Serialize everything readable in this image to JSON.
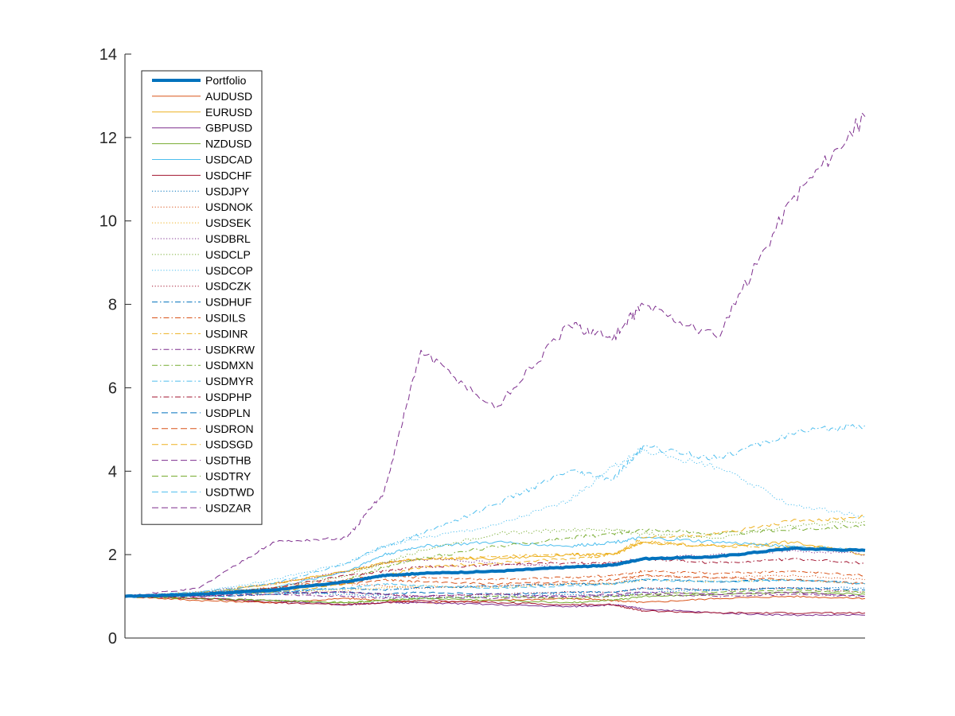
{
  "chart_data": {
    "type": "line",
    "title": "",
    "xlabel": "",
    "ylabel": "",
    "ylim": [
      0,
      14
    ],
    "yticks": [
      "0",
      "2",
      "4",
      "6",
      "8",
      "10",
      "12",
      "14"
    ],
    "xticks": [],
    "grid": false,
    "legend_position": "top-left",
    "x": [
      0,
      0.1,
      0.2,
      0.3,
      0.35,
      0.4,
      0.5,
      0.6,
      0.66,
      0.7,
      0.8,
      0.9,
      1.0
    ],
    "series": [
      {
        "name": "Portfolio",
        "color": "#0072BD",
        "dash": "solid",
        "width": 4,
        "values": [
          1.0,
          1.05,
          1.15,
          1.35,
          1.5,
          1.55,
          1.6,
          1.7,
          1.75,
          1.9,
          1.95,
          2.15,
          2.1
        ]
      },
      {
        "name": "AUDUSD",
        "color": "#D95319",
        "dash": "solid",
        "width": 1,
        "values": [
          1.0,
          0.9,
          0.85,
          0.95,
          0.9,
          0.85,
          0.9,
          0.95,
          0.9,
          0.85,
          0.95,
          1.0,
          0.95
        ]
      },
      {
        "name": "EURUSD",
        "color": "#EDB120",
        "dash": "solid",
        "width": 1,
        "values": [
          1.0,
          1.05,
          1.3,
          1.6,
          1.8,
          1.9,
          1.9,
          2.0,
          2.0,
          2.3,
          2.2,
          2.3,
          2.0
        ]
      },
      {
        "name": "GBPUSD",
        "color": "#7E2F8E",
        "dash": "solid",
        "width": 1,
        "values": [
          1.0,
          0.95,
          0.9,
          0.8,
          0.85,
          0.85,
          0.8,
          0.75,
          0.8,
          0.7,
          0.6,
          0.55,
          0.55
        ]
      },
      {
        "name": "NZDUSD",
        "color": "#77AC30",
        "dash": "solid",
        "width": 1,
        "values": [
          1.0,
          0.95,
          0.9,
          0.85,
          0.9,
          0.95,
          0.9,
          0.85,
          0.9,
          1.0,
          1.05,
          1.1,
          1.05
        ]
      },
      {
        "name": "USDCAD",
        "color": "#4DBEEE",
        "dash": "solid",
        "width": 1,
        "values": [
          1.0,
          1.1,
          1.2,
          1.6,
          2.0,
          2.2,
          2.3,
          2.2,
          2.3,
          2.4,
          2.3,
          2.2,
          2.1
        ]
      },
      {
        "name": "USDCHF",
        "color": "#A2142F",
        "dash": "solid",
        "width": 1,
        "values": [
          1.0,
          0.95,
          0.85,
          0.8,
          0.85,
          0.9,
          0.85,
          0.8,
          0.8,
          0.65,
          0.6,
          0.6,
          0.6
        ]
      },
      {
        "name": "USDJPY",
        "color": "#0072BD",
        "dash": "dotted",
        "width": 1,
        "values": [
          1.0,
          1.05,
          1.1,
          1.05,
          1.0,
          0.95,
          1.0,
          1.05,
          1.0,
          1.1,
          1.15,
          1.2,
          1.2
        ]
      },
      {
        "name": "USDNOK",
        "color": "#D95319",
        "dash": "dotted",
        "width": 1,
        "values": [
          1.0,
          1.1,
          1.2,
          1.3,
          1.25,
          1.2,
          1.25,
          1.3,
          1.3,
          1.5,
          1.45,
          1.5,
          1.4
        ]
      },
      {
        "name": "USDSEK",
        "color": "#EDB120",
        "dash": "dotted",
        "width": 1,
        "values": [
          1.0,
          1.05,
          1.1,
          1.15,
          1.2,
          1.25,
          1.2,
          1.3,
          1.3,
          1.4,
          1.35,
          1.4,
          1.3
        ]
      },
      {
        "name": "USDBRL",
        "color": "#7E2F8E",
        "dash": "dotted",
        "width": 1,
        "values": [
          1.0,
          1.1,
          1.3,
          1.6,
          1.8,
          1.9,
          1.8,
          1.7,
          1.8,
          1.9,
          2.0,
          2.1,
          2.0
        ]
      },
      {
        "name": "USDCLP",
        "color": "#77AC30",
        "dash": "dotted",
        "width": 1,
        "values": [
          1.0,
          1.05,
          1.2,
          1.5,
          1.8,
          2.1,
          2.5,
          2.6,
          2.6,
          2.5,
          2.4,
          2.7,
          2.8
        ]
      },
      {
        "name": "USDCOP",
        "color": "#4DBEEE",
        "dash": "dotted",
        "width": 1,
        "values": [
          1.0,
          1.1,
          1.4,
          1.8,
          2.2,
          2.4,
          2.7,
          3.3,
          4.1,
          4.5,
          4.1,
          3.2,
          2.9
        ]
      },
      {
        "name": "USDCZK",
        "color": "#A2142F",
        "dash": "dotted",
        "width": 1,
        "values": [
          1.0,
          1.0,
          1.05,
          1.1,
          1.05,
          1.0,
          1.05,
          1.1,
          1.1,
          1.2,
          1.15,
          1.2,
          1.1
        ]
      },
      {
        "name": "USDHUF",
        "color": "#0072BD",
        "dash": "dashdot",
        "width": 1,
        "values": [
          1.0,
          1.05,
          1.1,
          1.2,
          1.15,
          1.2,
          1.25,
          1.3,
          1.3,
          1.4,
          1.35,
          1.4,
          1.3
        ]
      },
      {
        "name": "USDILS",
        "color": "#D95319",
        "dash": "dashdot",
        "width": 1,
        "values": [
          1.0,
          1.05,
          1.2,
          1.4,
          1.5,
          1.45,
          1.4,
          1.45,
          1.5,
          1.6,
          1.55,
          1.6,
          1.5
        ]
      },
      {
        "name": "USDINR",
        "color": "#EDB120",
        "dash": "dashdot",
        "width": 1,
        "values": [
          1.0,
          1.1,
          1.3,
          1.6,
          1.8,
          1.9,
          1.95,
          2.0,
          2.0,
          2.3,
          2.2,
          2.2,
          2.1
        ]
      },
      {
        "name": "USDKRW",
        "color": "#7E2F8E",
        "dash": "dashdot",
        "width": 1,
        "values": [
          1.0,
          1.0,
          1.05,
          1.0,
          0.95,
          1.0,
          0.95,
          1.0,
          1.0,
          1.05,
          1.0,
          1.05,
          1.0
        ]
      },
      {
        "name": "USDMXN",
        "color": "#77AC30",
        "dash": "dashdot",
        "width": 1,
        "values": [
          1.0,
          1.05,
          1.1,
          1.4,
          1.7,
          1.9,
          2.2,
          2.4,
          2.5,
          2.6,
          2.5,
          2.6,
          2.7
        ]
      },
      {
        "name": "USDMYR",
        "color": "#4DBEEE",
        "dash": "dashdot",
        "width": 1,
        "values": [
          1.0,
          1.1,
          1.3,
          1.8,
          2.2,
          2.5,
          3.2,
          4.0,
          3.8,
          4.6,
          4.3,
          4.9,
          5.1
        ]
      },
      {
        "name": "USDPHP",
        "color": "#A2142F",
        "dash": "dashdot",
        "width": 1,
        "values": [
          1.0,
          1.05,
          1.2,
          1.5,
          1.6,
          1.7,
          1.75,
          1.8,
          1.8,
          1.9,
          1.8,
          1.9,
          1.8
        ]
      },
      {
        "name": "USDPLN",
        "color": "#0072BD",
        "dash": "dashed",
        "width": 1,
        "values": [
          1.0,
          1.0,
          1.05,
          1.1,
          1.05,
          1.1,
          1.05,
          1.1,
          1.1,
          1.2,
          1.15,
          1.2,
          1.15
        ]
      },
      {
        "name": "USDRON",
        "color": "#D95319",
        "dash": "dashed",
        "width": 1,
        "values": [
          1.0,
          1.05,
          1.15,
          1.3,
          1.4,
          1.35,
          1.3,
          1.35,
          1.4,
          1.5,
          1.45,
          1.4,
          1.3
        ]
      },
      {
        "name": "USDSGD",
        "color": "#EDB120",
        "dash": "dashed",
        "width": 1,
        "values": [
          1.0,
          1.05,
          1.1,
          1.3,
          1.5,
          1.7,
          1.8,
          1.9,
          2.0,
          2.4,
          2.5,
          2.8,
          2.9
        ]
      },
      {
        "name": "USDTHB",
        "color": "#7E2F8E",
        "dash": "dashed",
        "width": 1,
        "values": [
          1.0,
          1.0,
          1.1,
          1.1,
          1.05,
          1.0,
          1.05,
          1.0,
          1.05,
          1.1,
          1.05,
          1.1,
          1.0
        ]
      },
      {
        "name": "USDTRY",
        "color": "#77AC30",
        "dash": "dashed",
        "width": 1,
        "values": [
          1.0,
          0.95,
          0.9,
          0.85,
          0.9,
          0.95,
          1.0,
          0.95,
          1.0,
          1.05,
          1.1,
          1.15,
          1.1
        ]
      },
      {
        "name": "USDTWD",
        "color": "#4DBEEE",
        "dash": "dashed",
        "width": 1,
        "values": [
          1.0,
          1.05,
          1.1,
          1.2,
          1.3,
          1.25,
          1.2,
          1.25,
          1.3,
          1.4,
          1.35,
          1.4,
          1.3
        ]
      },
      {
        "name": "USDZAR",
        "color": "#7E2F8E",
        "dash": "dashed",
        "width": 1,
        "values": [
          1.0,
          1.2,
          2.3,
          2.4,
          3.5,
          6.9,
          5.5,
          7.5,
          7.2,
          8.0,
          7.2,
          10.5,
          12.5
        ]
      }
    ]
  }
}
